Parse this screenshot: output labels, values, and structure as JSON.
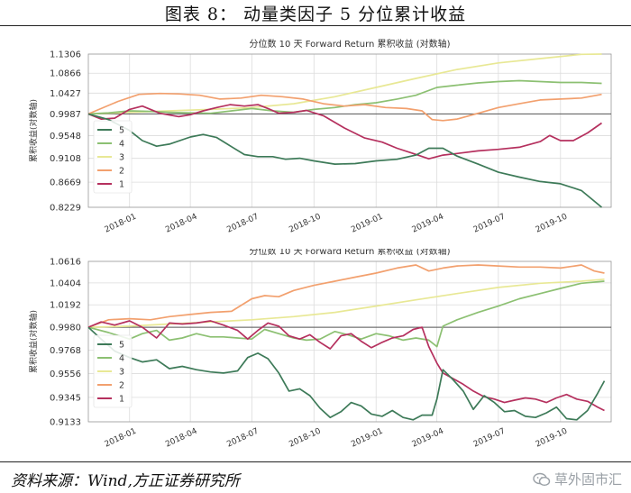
{
  "header": {
    "title": "图表 8：      动量类因子 5 分位累计收益"
  },
  "source": {
    "text": "资料来源：Wind,方正证券研究所"
  },
  "watermark": {
    "text": "草外固市汇"
  },
  "colors": {
    "s5": "#3d7a58",
    "s4": "#8cc072",
    "s3": "#e8e895",
    "s2": "#f2a06e",
    "s1": "#b5305e",
    "ref": "#555555",
    "grid": "#dcdcdc"
  },
  "chart_data": [
    {
      "type": "line",
      "title": "分位数 10 天 Forward Return 累积收益 (对数轴)",
      "ylabel": "累积收益(对数轴)",
      "yscale": "log",
      "yticks": [
        "1.1306",
        "1.0866",
        "1.0427",
        "0.9987",
        "0.9548",
        "0.9108",
        "0.8669",
        "0.8229"
      ],
      "ylim": [
        0.8229,
        1.1306
      ],
      "reference_line": 0.9987,
      "xlim": [
        "2017-11-01",
        "2019-12-15"
      ],
      "xticks": [
        "2018-01",
        "2018-04",
        "2018-07",
        "2018-10",
        "2019-01",
        "2019-04",
        "2019-07",
        "2019-10"
      ],
      "legend": "lower-left",
      "series": [
        {
          "name": "5",
          "x": [
            "2017-11-01",
            "2017-12-01",
            "2018-01-01",
            "2018-01-20",
            "2018-02-10",
            "2018-03-01",
            "2018-04-01",
            "2018-04-20",
            "2018-05-10",
            "2018-06-01",
            "2018-06-20",
            "2018-07-10",
            "2018-08-01",
            "2018-08-20",
            "2018-09-10",
            "2018-10-01",
            "2018-11-01",
            "2018-12-01",
            "2019-01-01",
            "2019-02-01",
            "2019-03-01",
            "2019-03-20",
            "2019-04-10",
            "2019-05-01",
            "2019-06-01",
            "2019-07-01",
            "2019-08-01",
            "2019-09-01",
            "2019-10-01",
            "2019-11-01",
            "2019-12-01"
          ],
          "y": [
            0.9987,
            0.987,
            0.965,
            0.945,
            0.934,
            0.938,
            0.952,
            0.957,
            0.951,
            0.933,
            0.918,
            0.914,
            0.914,
            0.909,
            0.911,
            0.906,
            0.9,
            0.901,
            0.906,
            0.909,
            0.917,
            0.93,
            0.93,
            0.915,
            0.9,
            0.885,
            0.876,
            0.868,
            0.864,
            0.852,
            0.8229
          ]
        },
        {
          "name": "4",
          "x": [
            "2017-11-01",
            "2017-12-01",
            "2018-01-01",
            "2018-02-01",
            "2018-03-01",
            "2018-04-01",
            "2018-05-01",
            "2018-06-01",
            "2018-07-01",
            "2018-08-01",
            "2018-09-01",
            "2018-10-01",
            "2018-11-01",
            "2018-12-01",
            "2019-01-01",
            "2019-02-01",
            "2019-03-01",
            "2019-04-01",
            "2019-05-01",
            "2019-06-01",
            "2019-07-01",
            "2019-08-01",
            "2019-09-01",
            "2019-10-01",
            "2019-11-01",
            "2019-12-01"
          ],
          "y": [
            0.9987,
            1.001,
            1.005,
            1.004,
            1.002,
            1.001,
            1.0,
            1.005,
            1.01,
            1.005,
            1.002,
            1.008,
            1.012,
            1.018,
            1.022,
            1.03,
            1.038,
            1.055,
            1.06,
            1.065,
            1.068,
            1.07,
            1.068,
            1.066,
            1.066,
            1.064
          ]
        },
        {
          "name": "3",
          "x": [
            "2017-11-01",
            "2018-01-01",
            "2018-03-01",
            "2018-05-01",
            "2018-07-01",
            "2018-09-01",
            "2018-11-01",
            "2019-01-01",
            "2019-03-01",
            "2019-05-01",
            "2019-07-01",
            "2019-09-01",
            "2019-11-01",
            "2019-12-01"
          ],
          "y": [
            0.9987,
            1.002,
            1.005,
            1.008,
            1.012,
            1.02,
            1.035,
            1.055,
            1.075,
            1.095,
            1.11,
            1.12,
            1.13,
            1.1306
          ]
        },
        {
          "name": "2",
          "x": [
            "2017-11-01",
            "2017-12-15",
            "2018-01-15",
            "2018-02-15",
            "2018-03-15",
            "2018-04-15",
            "2018-05-15",
            "2018-06-15",
            "2018-07-15",
            "2018-08-15",
            "2018-09-15",
            "2018-10-15",
            "2018-11-15",
            "2018-12-15",
            "2019-01-15",
            "2019-02-15",
            "2019-03-10",
            "2019-03-25",
            "2019-04-10",
            "2019-05-01",
            "2019-06-01",
            "2019-07-01",
            "2019-08-01",
            "2019-09-01",
            "2019-10-01",
            "2019-11-01",
            "2019-12-01"
          ],
          "y": [
            0.9987,
            1.025,
            1.04,
            1.042,
            1.041,
            1.038,
            1.03,
            1.032,
            1.038,
            1.035,
            1.03,
            1.02,
            1.015,
            1.018,
            1.012,
            1.01,
            1.005,
            0.987,
            0.985,
            0.988,
            1.0,
            1.012,
            1.02,
            1.028,
            1.03,
            1.032,
            1.04
          ]
        },
        {
          "name": "1",
          "x": [
            "2017-11-01",
            "2017-11-20",
            "2017-12-10",
            "2018-01-01",
            "2018-01-20",
            "2018-02-15",
            "2018-03-15",
            "2018-04-01",
            "2018-04-20",
            "2018-05-10",
            "2018-05-30",
            "2018-06-20",
            "2018-07-10",
            "2018-07-25",
            "2018-08-10",
            "2018-09-01",
            "2018-09-20",
            "2018-10-15",
            "2018-11-15",
            "2018-12-15",
            "2019-01-10",
            "2019-02-01",
            "2019-02-25",
            "2019-03-20",
            "2019-04-10",
            "2019-05-01",
            "2019-06-01",
            "2019-07-01",
            "2019-08-01",
            "2019-09-01",
            "2019-09-15",
            "2019-10-01",
            "2019-10-20",
            "2019-11-10",
            "2019-12-01"
          ],
          "y": [
            0.9987,
            0.988,
            0.99,
            1.008,
            1.015,
            1.0,
            0.993,
            0.997,
            1.005,
            1.012,
            1.018,
            1.015,
            1.018,
            1.01,
            1.0,
            1.002,
            1.006,
            0.995,
            0.97,
            0.95,
            0.942,
            0.93,
            0.92,
            0.91,
            0.917,
            0.92,
            0.925,
            0.928,
            0.932,
            0.943,
            0.955,
            0.945,
            0.945,
            0.96,
            0.98
          ]
        }
      ]
    },
    {
      "type": "line",
      "title": "分位数 10 天 Forward Return 累积收益 (对数轴)",
      "ylabel": "累积收益(对数轴)",
      "yscale": "log",
      "yticks": [
        "1.0616",
        "1.0404",
        "1.0192",
        "0.9980",
        "0.9768",
        "0.9556",
        "0.9345",
        "0.9133"
      ],
      "ylim": [
        0.9133,
        1.0616
      ],
      "reference_line": 0.998,
      "xlim": [
        "2017-11-01",
        "2019-12-15"
      ],
      "xticks": [
        "2018-01",
        "2018-04",
        "2018-07",
        "2018-10",
        "2019-01",
        "2019-04",
        "2019-07",
        "2019-10"
      ],
      "legend": "lower-left",
      "series": [
        {
          "name": "5",
          "x": [
            "2017-11-01",
            "2017-11-20",
            "2017-12-10",
            "2018-01-01",
            "2018-01-20",
            "2018-02-10",
            "2018-03-01",
            "2018-03-20",
            "2018-04-10",
            "2018-05-01",
            "2018-05-20",
            "2018-06-10",
            "2018-06-25",
            "2018-07-10",
            "2018-07-25",
            "2018-08-10",
            "2018-08-25",
            "2018-09-10",
            "2018-09-25",
            "2018-10-10",
            "2018-10-25",
            "2018-11-10",
            "2018-11-25",
            "2018-12-10",
            "2018-12-25",
            "2019-01-10",
            "2019-01-25",
            "2019-02-10",
            "2019-02-25",
            "2019-03-10",
            "2019-03-25",
            "2019-04-01",
            "2019-04-10",
            "2019-04-25",
            "2019-05-10",
            "2019-05-25",
            "2019-06-10",
            "2019-06-25",
            "2019-07-10",
            "2019-07-25",
            "2019-08-10",
            "2019-08-25",
            "2019-09-10",
            "2019-09-25",
            "2019-10-10",
            "2019-10-25",
            "2019-11-10",
            "2019-11-25",
            "2019-12-05"
          ],
          "y": [
            0.998,
            0.987,
            0.976,
            0.97,
            0.966,
            0.968,
            0.96,
            0.962,
            0.959,
            0.957,
            0.956,
            0.958,
            0.97,
            0.974,
            0.969,
            0.956,
            0.94,
            0.942,
            0.936,
            0.925,
            0.917,
            0.922,
            0.93,
            0.927,
            0.92,
            0.918,
            0.923,
            0.917,
            0.915,
            0.919,
            0.919,
            0.933,
            0.959,
            0.95,
            0.94,
            0.924,
            0.936,
            0.93,
            0.922,
            0.923,
            0.918,
            0.917,
            0.921,
            0.926,
            0.916,
            0.915,
            0.923,
            0.938,
            0.949
          ]
        },
        {
          "name": "4",
          "x": [
            "2017-11-01",
            "2017-12-01",
            "2018-01-01",
            "2018-01-20",
            "2018-02-10",
            "2018-03-01",
            "2018-03-20",
            "2018-04-10",
            "2018-05-01",
            "2018-05-20",
            "2018-06-10",
            "2018-07-01",
            "2018-07-20",
            "2018-08-10",
            "2018-09-01",
            "2018-09-20",
            "2018-10-10",
            "2018-11-01",
            "2018-11-20",
            "2018-12-10",
            "2019-01-01",
            "2019-01-20",
            "2019-02-10",
            "2019-03-01",
            "2019-03-20",
            "2019-04-01",
            "2019-04-10",
            "2019-05-01",
            "2019-06-01",
            "2019-07-01",
            "2019-08-01",
            "2019-09-01",
            "2019-10-01",
            "2019-11-01",
            "2019-12-05"
          ],
          "y": [
            0.998,
            0.993,
            0.987,
            0.992,
            0.995,
            0.986,
            0.988,
            0.992,
            0.989,
            0.989,
            0.988,
            0.987,
            0.996,
            0.992,
            0.988,
            0.986,
            0.987,
            0.994,
            0.991,
            0.987,
            0.992,
            0.99,
            0.986,
            0.988,
            0.986,
            0.98,
            0.999,
            1.005,
            1.012,
            1.018,
            1.025,
            1.03,
            1.035,
            1.04,
            1.042
          ]
        },
        {
          "name": "3",
          "x": [
            "2017-11-01",
            "2018-01-01",
            "2018-03-01",
            "2018-05-01",
            "2018-07-01",
            "2018-09-01",
            "2018-11-01",
            "2019-01-01",
            "2019-03-01",
            "2019-05-01",
            "2019-07-01",
            "2019-09-01",
            "2019-11-01",
            "2019-12-05"
          ],
          "y": [
            0.998,
            0.999,
            1.001,
            1.003,
            1.005,
            1.008,
            1.012,
            1.018,
            1.024,
            1.03,
            1.036,
            1.04,
            1.042,
            1.044
          ]
        },
        {
          "name": "2",
          "x": [
            "2017-11-01",
            "2017-12-01",
            "2018-01-01",
            "2018-02-01",
            "2018-03-01",
            "2018-04-01",
            "2018-05-01",
            "2018-06-01",
            "2018-07-01",
            "2018-07-20",
            "2018-08-10",
            "2018-09-01",
            "2018-10-01",
            "2018-11-01",
            "2018-12-01",
            "2019-01-01",
            "2019-02-01",
            "2019-03-01",
            "2019-03-20",
            "2019-04-10",
            "2019-05-01",
            "2019-06-01",
            "2019-07-01",
            "2019-08-01",
            "2019-09-01",
            "2019-10-01",
            "2019-11-01",
            "2019-11-20",
            "2019-12-05"
          ],
          "y": [
            0.998,
            1.005,
            1.006,
            1.005,
            1.008,
            1.01,
            1.012,
            1.013,
            1.025,
            1.028,
            1.027,
            1.033,
            1.038,
            1.042,
            1.046,
            1.05,
            1.055,
            1.058,
            1.052,
            1.055,
            1.057,
            1.058,
            1.057,
            1.056,
            1.056,
            1.055,
            1.058,
            1.052,
            1.05
          ]
        },
        {
          "name": "1",
          "x": [
            "2017-11-01",
            "2017-11-20",
            "2017-12-10",
            "2018-01-01",
            "2018-01-20",
            "2018-02-10",
            "2018-03-01",
            "2018-03-20",
            "2018-04-10",
            "2018-05-01",
            "2018-05-20",
            "2018-06-10",
            "2018-06-25",
            "2018-07-10",
            "2018-07-25",
            "2018-08-10",
            "2018-08-25",
            "2018-09-10",
            "2018-09-25",
            "2018-10-10",
            "2018-10-25",
            "2018-11-10",
            "2018-11-25",
            "2018-12-10",
            "2018-12-25",
            "2019-01-10",
            "2019-01-25",
            "2019-02-10",
            "2019-02-25",
            "2019-03-10",
            "2019-03-20",
            "2019-04-01",
            "2019-04-10",
            "2019-04-25",
            "2019-05-10",
            "2019-05-25",
            "2019-06-10",
            "2019-06-25",
            "2019-07-10",
            "2019-07-25",
            "2019-08-10",
            "2019-08-25",
            "2019-09-10",
            "2019-09-25",
            "2019-10-10",
            "2019-10-25",
            "2019-11-10",
            "2019-11-25",
            "2019-12-05"
          ],
          "y": [
            0.998,
            1.003,
            1.0,
            1.004,
            0.998,
            0.988,
            1.002,
            1.001,
            1.002,
            1.004,
            1.0,
            0.995,
            0.987,
            0.995,
            1.002,
            0.999,
            0.99,
            0.987,
            0.991,
            0.984,
            0.978,
            0.99,
            0.992,
            0.985,
            0.979,
            0.984,
            0.988,
            0.99,
            0.996,
            0.998,
            0.98,
            0.965,
            0.956,
            0.951,
            0.946,
            0.94,
            0.935,
            0.933,
            0.93,
            0.932,
            0.934,
            0.933,
            0.93,
            0.934,
            0.937,
            0.933,
            0.931,
            0.926,
            0.923
          ]
        }
      ]
    }
  ]
}
